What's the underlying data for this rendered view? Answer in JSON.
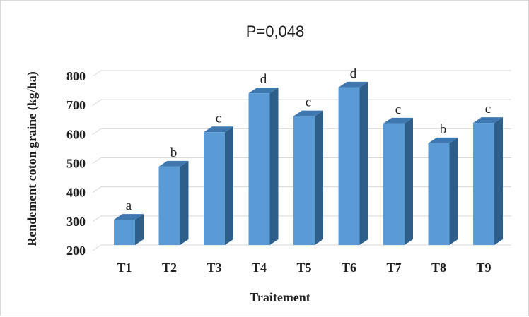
{
  "chart_data": {
    "type": "bar",
    "title": "P=0,048",
    "xlabel": "Traitement",
    "ylabel": "Rendement coton graine (kg/ha)",
    "categories": [
      "T1",
      "T2",
      "T3",
      "T4",
      "T5",
      "T6",
      "T7",
      "T8",
      "T9"
    ],
    "values": [
      287,
      470,
      588,
      722,
      643,
      742,
      618,
      550,
      620
    ],
    "data_labels": [
      "a",
      "b",
      "c",
      "d",
      "c",
      "d",
      "c",
      "b",
      "c"
    ],
    "ylim": [
      200,
      800
    ],
    "yticks": [
      "200",
      "300",
      "400",
      "500",
      "600",
      "700",
      "800"
    ],
    "grid": true,
    "three_d": true,
    "colors": {
      "bar_front": "#5b9bd5",
      "bar_side": "#2e5f8a",
      "bar_top": "#3f78b1",
      "grid": "#d9d9d9"
    }
  }
}
